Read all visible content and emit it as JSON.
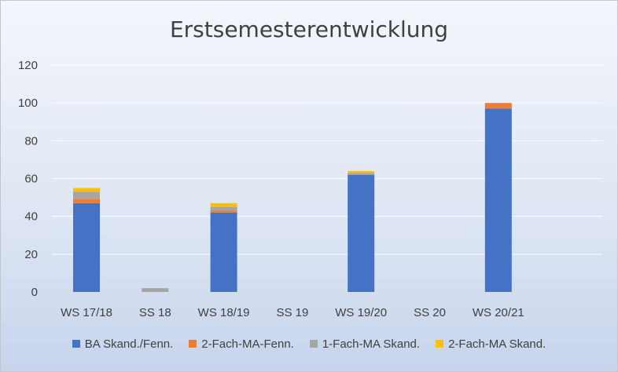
{
  "chart_data": {
    "type": "bar",
    "stacked": true,
    "title": "Erstsemesterentwicklung",
    "categories": [
      "WS 17/18",
      "SS 18",
      "WS 18/19",
      "SS 19",
      "WS 19/20",
      "SS 20",
      "WS 20/21"
    ],
    "series": [
      {
        "name": "BA Skand./Fenn.",
        "color": "#4472C4",
        "values": [
          47,
          0,
          42,
          0,
          62,
          0,
          97
        ]
      },
      {
        "name": "2-Fach-MA-Fenn.",
        "color": "#ED7D31",
        "values": [
          2,
          0,
          1,
          0,
          0,
          0,
          3
        ]
      },
      {
        "name": "1-Fach-MA Skand.",
        "color": "#A5A5A5",
        "values": [
          4,
          2,
          2,
          0,
          1,
          0,
          0
        ]
      },
      {
        "name": "2-Fach-MA Skand.",
        "color": "#FFC000",
        "values": [
          2,
          0,
          2,
          0,
          1,
          0,
          0
        ]
      }
    ],
    "yticks": [
      0,
      20,
      40,
      60,
      80,
      100,
      120
    ],
    "ylim": [
      0,
      120
    ],
    "grid": true,
    "legend_position": "bottom"
  }
}
